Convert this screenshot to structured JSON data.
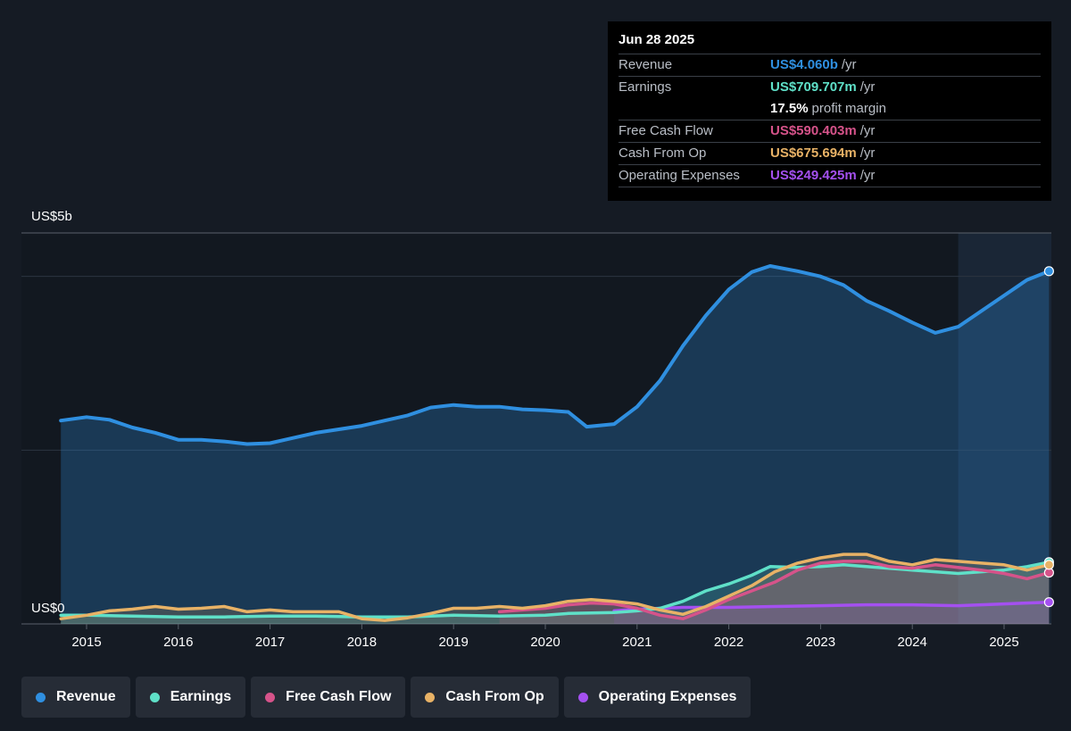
{
  "tooltip": {
    "date": "Jun 28 2025",
    "rows": {
      "revenue": {
        "label": "Revenue",
        "value": "US$4.060b",
        "unit": "/yr"
      },
      "earnings": {
        "label": "Earnings",
        "value": "US$709.707m",
        "unit": "/yr"
      },
      "margin": {
        "value": "17.5%",
        "unit": "profit margin"
      },
      "fcf": {
        "label": "Free Cash Flow",
        "value": "US$590.403m",
        "unit": "/yr"
      },
      "cfo": {
        "label": "Cash From Op",
        "value": "US$675.694m",
        "unit": "/yr"
      },
      "opex": {
        "label": "Operating Expenses",
        "value": "US$249.425m",
        "unit": "/yr"
      }
    }
  },
  "legend": {
    "revenue": "Revenue",
    "earnings": "Earnings",
    "fcf": "Free Cash Flow",
    "cfo": "Cash From Op",
    "opex": "Operating Expenses"
  },
  "colors": {
    "revenue": "#2f8fe0",
    "earnings": "#5fe0c8",
    "fcf": "#d6538a",
    "cfo": "#e8b266",
    "opex": "#a450f0",
    "background": "#151b24"
  },
  "chart_data": {
    "type": "line",
    "y_label_top": "US$5b",
    "y_label_bottom": "US$0",
    "ylim": [
      0,
      4.5
    ],
    "xlim": [
      2014.6,
      2025.55
    ],
    "x_ticks": [
      "2015",
      "2016",
      "2017",
      "2018",
      "2019",
      "2020",
      "2021",
      "2022",
      "2023",
      "2024",
      "2025"
    ],
    "grid": true,
    "series": [
      {
        "key": "revenue",
        "name": "Revenue",
        "x": [
          2014.72,
          2015.0,
          2015.25,
          2015.5,
          2015.75,
          2016.0,
          2016.25,
          2016.5,
          2016.75,
          2017.0,
          2017.25,
          2017.5,
          2017.75,
          2018.0,
          2018.25,
          2018.5,
          2018.75,
          2019.0,
          2019.25,
          2019.5,
          2019.75,
          2020.0,
          2020.25,
          2020.45,
          2020.75,
          2021.0,
          2021.25,
          2021.5,
          2021.75,
          2022.0,
          2022.25,
          2022.45,
          2022.75,
          2023.0,
          2023.25,
          2023.5,
          2023.75,
          2024.0,
          2024.25,
          2024.5,
          2024.75,
          2025.0,
          2025.25,
          2025.49
        ],
        "values": [
          2.34,
          2.38,
          2.35,
          2.26,
          2.2,
          2.12,
          2.12,
          2.1,
          2.07,
          2.08,
          2.14,
          2.2,
          2.24,
          2.28,
          2.34,
          2.4,
          2.49,
          2.52,
          2.5,
          2.5,
          2.47,
          2.46,
          2.44,
          2.27,
          2.3,
          2.5,
          2.8,
          3.2,
          3.55,
          3.85,
          4.05,
          4.12,
          4.06,
          4.0,
          3.9,
          3.72,
          3.6,
          3.47,
          3.35,
          3.42,
          3.6,
          3.78,
          3.96,
          4.06
        ]
      },
      {
        "key": "earnings",
        "name": "Earnings",
        "x": [
          2014.72,
          2015.0,
          2015.5,
          2016.0,
          2016.5,
          2017.0,
          2017.5,
          2018.0,
          2018.5,
          2019.0,
          2019.5,
          2020.0,
          2020.25,
          2020.75,
          2021.0,
          2021.25,
          2021.5,
          2021.75,
          2022.0,
          2022.25,
          2022.45,
          2022.75,
          2023.0,
          2023.25,
          2023.5,
          2023.75,
          2024.0,
          2024.25,
          2024.5,
          2024.75,
          2025.0,
          2025.25,
          2025.49
        ],
        "values": [
          0.1,
          0.1,
          0.09,
          0.08,
          0.08,
          0.09,
          0.09,
          0.08,
          0.08,
          0.1,
          0.09,
          0.1,
          0.12,
          0.13,
          0.15,
          0.18,
          0.26,
          0.38,
          0.46,
          0.56,
          0.66,
          0.65,
          0.66,
          0.68,
          0.66,
          0.64,
          0.62,
          0.6,
          0.58,
          0.6,
          0.62,
          0.66,
          0.71
        ]
      },
      {
        "key": "fcf",
        "name": "Free Cash Flow",
        "x": [
          2019.5,
          2019.75,
          2020.0,
          2020.25,
          2020.5,
          2020.75,
          2021.0,
          2021.25,
          2021.5,
          2021.75,
          2022.0,
          2022.25,
          2022.5,
          2022.75,
          2023.0,
          2023.25,
          2023.5,
          2023.75,
          2024.0,
          2024.25,
          2024.5,
          2024.75,
          2025.0,
          2025.25,
          2025.49
        ],
        "values": [
          0.14,
          0.16,
          0.18,
          0.22,
          0.24,
          0.23,
          0.18,
          0.1,
          0.06,
          0.16,
          0.28,
          0.38,
          0.48,
          0.62,
          0.7,
          0.72,
          0.72,
          0.66,
          0.64,
          0.68,
          0.65,
          0.62,
          0.58,
          0.52,
          0.59
        ]
      },
      {
        "key": "cfo",
        "name": "Cash From Op",
        "x": [
          2014.72,
          2015.0,
          2015.25,
          2015.5,
          2015.75,
          2016.0,
          2016.25,
          2016.5,
          2016.75,
          2017.0,
          2017.25,
          2017.5,
          2017.75,
          2018.0,
          2018.25,
          2018.5,
          2018.75,
          2019.0,
          2019.25,
          2019.5,
          2019.75,
          2020.0,
          2020.25,
          2020.5,
          2020.75,
          2021.0,
          2021.25,
          2021.5,
          2021.75,
          2022.0,
          2022.25,
          2022.5,
          2022.75,
          2023.0,
          2023.25,
          2023.5,
          2023.75,
          2024.0,
          2024.25,
          2024.5,
          2024.75,
          2025.0,
          2025.25,
          2025.49
        ],
        "values": [
          0.06,
          0.1,
          0.15,
          0.17,
          0.2,
          0.17,
          0.18,
          0.2,
          0.14,
          0.16,
          0.14,
          0.14,
          0.14,
          0.06,
          0.04,
          0.07,
          0.12,
          0.18,
          0.18,
          0.2,
          0.18,
          0.21,
          0.26,
          0.28,
          0.26,
          0.23,
          0.16,
          0.11,
          0.2,
          0.32,
          0.44,
          0.6,
          0.7,
          0.76,
          0.8,
          0.8,
          0.72,
          0.68,
          0.74,
          0.72,
          0.7,
          0.68,
          0.62,
          0.68
        ]
      },
      {
        "key": "opex",
        "name": "Operating Expenses",
        "x": [
          2020.75,
          2021.0,
          2021.5,
          2022.0,
          2022.5,
          2023.0,
          2023.5,
          2024.0,
          2024.5,
          2025.0,
          2025.49
        ],
        "values": [
          0.15,
          0.17,
          0.19,
          0.19,
          0.2,
          0.21,
          0.22,
          0.22,
          0.21,
          0.23,
          0.25
        ]
      }
    ]
  }
}
